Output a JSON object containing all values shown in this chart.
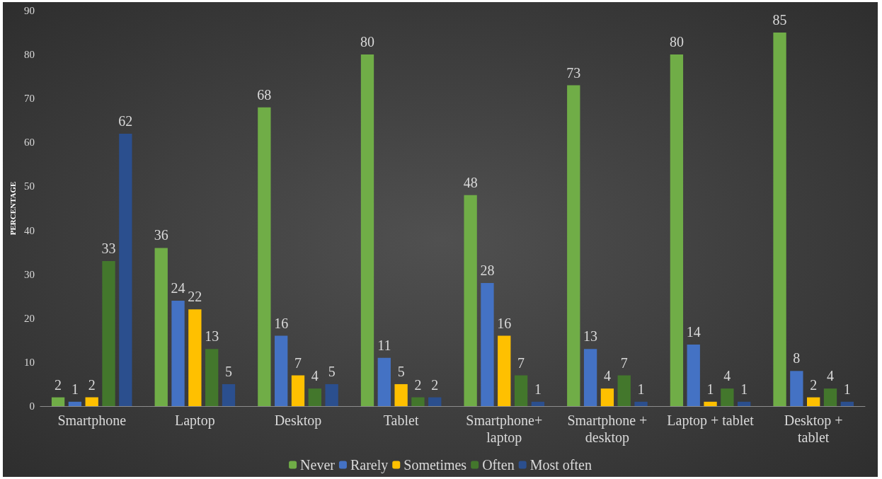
{
  "chart_data": {
    "type": "bar",
    "ylabel": "PERCENTAGE",
    "categories": [
      "Smartphone",
      "Laptop",
      "Desktop",
      "Tablet",
      "Smartphone+\nlaptop",
      "Smartphone +\ndesktop",
      "Laptop + tablet",
      "Desktop +\ntablet"
    ],
    "series": [
      {
        "name": "Never",
        "color": "#70ad47",
        "values": [
          2,
          36,
          68,
          80,
          48,
          73,
          80,
          85
        ]
      },
      {
        "name": "Rarely",
        "color": "#4472c4",
        "values": [
          1,
          24,
          16,
          11,
          28,
          13,
          14,
          8
        ]
      },
      {
        "name": "Sometimes",
        "color": "#ffc000",
        "values": [
          2,
          22,
          7,
          5,
          16,
          4,
          1,
          2
        ]
      },
      {
        "name": "Often",
        "color": "#43772c",
        "values": [
          33,
          13,
          4,
          2,
          7,
          7,
          4,
          4
        ]
      },
      {
        "name": "Most often",
        "color": "#2b4f8e",
        "values": [
          62,
          5,
          5,
          2,
          1,
          1,
          1,
          1
        ]
      }
    ],
    "ylim": [
      0,
      90
    ],
    "yticks": [
      0,
      10,
      20,
      30,
      40,
      50,
      60,
      70,
      80,
      90
    ],
    "grid": false,
    "legend": "bottom",
    "data_labels": true
  }
}
